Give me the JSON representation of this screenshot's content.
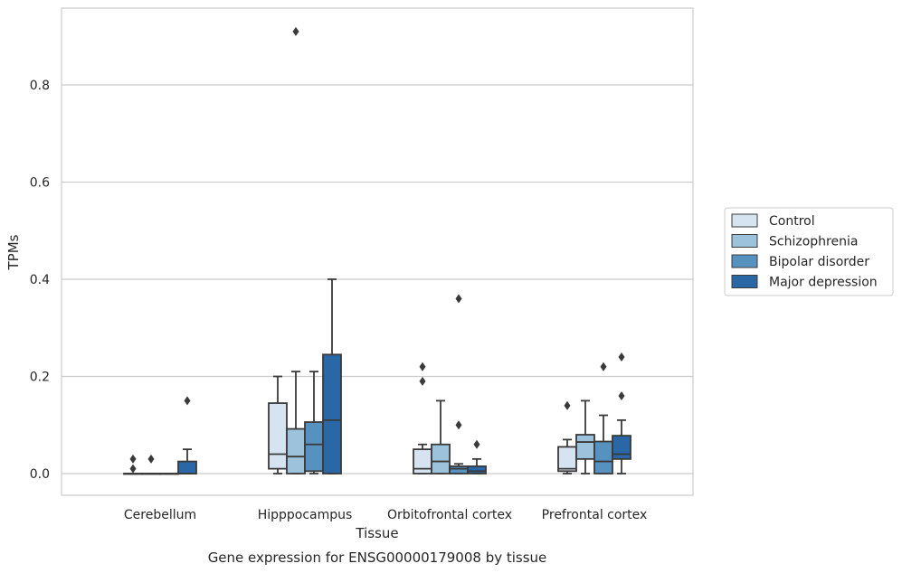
{
  "chart_data": {
    "type": "box",
    "title": "",
    "caption": "Gene expression for ENSG00000179008 by tissue",
    "xlabel": "Tissue",
    "ylabel": "TPMs",
    "ylim": [
      -0.045,
      0.96
    ],
    "yticks": [
      0.0,
      0.2,
      0.4,
      0.6,
      0.8
    ],
    "ytick_labels": [
      "0.0",
      "0.2",
      "0.4",
      "0.6",
      "0.8"
    ],
    "grid": "horizontal",
    "legend_position": "right",
    "categories": [
      "Cerebellum",
      "Hipppocampus",
      "Orbitofrontal cortex",
      "Prefrontal cortex"
    ],
    "series": [
      {
        "name": "Control",
        "color": "#d6e4f2",
        "boxes": [
          {
            "whislo": 0.0,
            "q1": 0.0,
            "med": 0.0,
            "q3": 0.0,
            "whishi": 0.0,
            "fliers": [
              0.01,
              0.03
            ]
          },
          {
            "whislo": 0.0,
            "q1": 0.01,
            "med": 0.04,
            "q3": 0.145,
            "whishi": 0.2,
            "fliers": []
          },
          {
            "whislo": 0.0,
            "q1": 0.0,
            "med": 0.01,
            "q3": 0.05,
            "whishi": 0.06,
            "fliers": [
              0.19,
              0.22
            ]
          },
          {
            "whislo": 0.0,
            "q1": 0.005,
            "med": 0.01,
            "q3": 0.055,
            "whishi": 0.07,
            "fliers": [
              0.14
            ]
          }
        ]
      },
      {
        "name": "Schizophrenia",
        "color": "#9cc2dc",
        "boxes": [
          {
            "whislo": 0.0,
            "q1": 0.0,
            "med": 0.0,
            "q3": 0.0,
            "whishi": 0.0,
            "fliers": [
              0.03
            ]
          },
          {
            "whislo": 0.0,
            "q1": 0.0,
            "med": 0.035,
            "q3": 0.092,
            "whishi": 0.21,
            "fliers": [
              0.91
            ]
          },
          {
            "whislo": 0.0,
            "q1": 0.0,
            "med": 0.025,
            "q3": 0.06,
            "whishi": 0.15,
            "fliers": []
          },
          {
            "whislo": 0.0,
            "q1": 0.03,
            "med": 0.065,
            "q3": 0.08,
            "whishi": 0.15,
            "fliers": []
          }
        ]
      },
      {
        "name": "Bipolar disorder",
        "color": "#5592c0",
        "boxes": [
          {
            "whislo": 0.0,
            "q1": 0.0,
            "med": 0.0,
            "q3": 0.0,
            "whishi": 0.0,
            "fliers": []
          },
          {
            "whislo": 0.0,
            "q1": 0.005,
            "med": 0.06,
            "q3": 0.106,
            "whishi": 0.21,
            "fliers": []
          },
          {
            "whislo": 0.0,
            "q1": 0.0,
            "med": 0.01,
            "q3": 0.015,
            "whishi": 0.02,
            "fliers": [
              0.1,
              0.36
            ]
          },
          {
            "whislo": 0.0,
            "q1": 0.0,
            "med": 0.025,
            "q3": 0.066,
            "whishi": 0.12,
            "fliers": [
              0.22
            ]
          }
        ]
      },
      {
        "name": "Major depression",
        "color": "#2a67a5",
        "boxes": [
          {
            "whislo": 0.0,
            "q1": 0.0,
            "med": 0.0,
            "q3": 0.025,
            "whishi": 0.05,
            "fliers": [
              0.15
            ]
          },
          {
            "whislo": 0.0,
            "q1": 0.0,
            "med": 0.11,
            "q3": 0.245,
            "whishi": 0.4,
            "fliers": []
          },
          {
            "whislo": 0.0,
            "q1": 0.0,
            "med": 0.005,
            "q3": 0.015,
            "whishi": 0.03,
            "fliers": [
              0.06
            ]
          },
          {
            "whislo": 0.0,
            "q1": 0.03,
            "med": 0.04,
            "q3": 0.078,
            "whishi": 0.11,
            "fliers": [
              0.16,
              0.24
            ]
          }
        ]
      }
    ]
  },
  "colors": {
    "edge": "#3a3a3a",
    "grid": "#cccccc",
    "axes_border": "#cccccc",
    "text": "#262626"
  }
}
